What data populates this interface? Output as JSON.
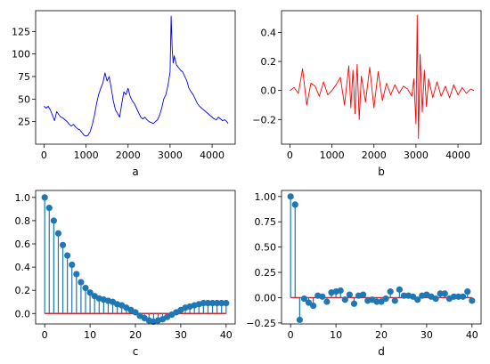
{
  "chart_data": [
    {
      "type": "line",
      "xlabel": "a",
      "color": "#0000ff",
      "xlim": [
        -200,
        4550
      ],
      "ylim": [
        0,
        148
      ],
      "xticks": [
        0,
        1000,
        2000,
        3000,
        4000
      ],
      "yticks": [
        25,
        50,
        75,
        100,
        125
      ],
      "x": [
        0,
        50,
        100,
        150,
        200,
        250,
        300,
        350,
        400,
        450,
        500,
        550,
        600,
        650,
        700,
        750,
        800,
        850,
        900,
        950,
        1000,
        1050,
        1100,
        1150,
        1200,
        1250,
        1300,
        1350,
        1400,
        1450,
        1500,
        1550,
        1600,
        1650,
        1700,
        1750,
        1800,
        1850,
        1900,
        1950,
        2000,
        2050,
        2100,
        2150,
        2200,
        2250,
        2300,
        2350,
        2400,
        2450,
        2500,
        2550,
        2600,
        2650,
        2700,
        2750,
        2800,
        2850,
        2900,
        2950,
        3000,
        3025,
        3050,
        3075,
        3100,
        3150,
        3200,
        3250,
        3300,
        3350,
        3400,
        3450,
        3500,
        3550,
        3600,
        3650,
        3700,
        3750,
        3800,
        3850,
        3900,
        3950,
        4000,
        4050,
        4100,
        4150,
        4200,
        4250,
        4300,
        4350,
        4380
      ],
      "values": [
        42,
        40,
        42,
        38,
        32,
        26,
        36,
        33,
        30,
        29,
        27,
        25,
        22,
        20,
        22,
        19,
        17,
        16,
        13,
        10,
        9,
        10,
        14,
        22,
        32,
        45,
        55,
        62,
        68,
        79,
        70,
        75,
        62,
        48,
        38,
        34,
        30,
        45,
        58,
        55,
        62,
        53,
        48,
        45,
        40,
        35,
        30,
        28,
        30,
        27,
        25,
        24,
        23,
        25,
        27,
        32,
        40,
        50,
        55,
        65,
        80,
        142,
        105,
        90,
        98,
        88,
        85,
        82,
        80,
        75,
        70,
        62,
        58,
        55,
        50,
        45,
        42,
        40,
        38,
        36,
        34,
        32,
        30,
        28,
        27,
        30,
        28,
        26,
        27,
        25,
        23
      ]
    },
    {
      "type": "line",
      "xlabel": "b",
      "color": "#ff0000",
      "xlim": [
        -200,
        4550
      ],
      "ylim": [
        -0.37,
        0.55
      ],
      "xticks": [
        0,
        1000,
        2000,
        3000,
        4000
      ],
      "yticks": [
        -0.2,
        0.0,
        0.2,
        0.4
      ],
      "x": [
        0,
        100,
        200,
        300,
        400,
        500,
        600,
        700,
        800,
        900,
        1000,
        1100,
        1200,
        1300,
        1400,
        1450,
        1500,
        1550,
        1600,
        1650,
        1700,
        1800,
        1900,
        2000,
        2100,
        2200,
        2300,
        2400,
        2500,
        2600,
        2700,
        2800,
        2900,
        2950,
        3000,
        3030,
        3060,
        3100,
        3150,
        3200,
        3250,
        3300,
        3400,
        3500,
        3600,
        3700,
        3800,
        3900,
        4000,
        4100,
        4200,
        4300,
        4380
      ],
      "values": [
        0.0,
        0.02,
        -0.02,
        0.15,
        -0.1,
        0.05,
        0.03,
        -0.04,
        0.06,
        -0.03,
        0.0,
        0.04,
        0.09,
        -0.1,
        0.17,
        -0.12,
        0.14,
        -0.16,
        0.18,
        -0.2,
        0.1,
        -0.08,
        0.16,
        -0.12,
        0.13,
        -0.07,
        0.05,
        -0.03,
        0.04,
        -0.02,
        0.03,
        0.01,
        -0.04,
        0.08,
        -0.23,
        0.52,
        -0.33,
        0.25,
        -0.15,
        0.14,
        -0.11,
        0.08,
        -0.05,
        0.06,
        -0.04,
        0.03,
        -0.05,
        0.04,
        -0.03,
        0.02,
        -0.02,
        0.01,
        0.0
      ]
    },
    {
      "type": "stem",
      "xlabel": "c",
      "stem_color": "#1f77b4",
      "baseline_color": "#d62728",
      "xlim": [
        -2,
        42
      ],
      "ylim": [
        -0.09,
        1.06
      ],
      "xticks": [
        0,
        10,
        20,
        30,
        40
      ],
      "yticks": [
        0.0,
        0.2,
        0.4,
        0.6,
        0.8,
        1.0
      ],
      "x": [
        0,
        1,
        2,
        3,
        4,
        5,
        6,
        7,
        8,
        9,
        10,
        11,
        12,
        13,
        14,
        15,
        16,
        17,
        18,
        19,
        20,
        21,
        22,
        23,
        24,
        25,
        26,
        27,
        28,
        29,
        30,
        31,
        32,
        33,
        34,
        35,
        36,
        37,
        38,
        39,
        40
      ],
      "values": [
        1.0,
        0.91,
        0.8,
        0.69,
        0.59,
        0.5,
        0.42,
        0.34,
        0.27,
        0.22,
        0.18,
        0.15,
        0.13,
        0.12,
        0.11,
        0.1,
        0.08,
        0.07,
        0.05,
        0.03,
        0.01,
        -0.02,
        -0.04,
        -0.06,
        -0.07,
        -0.06,
        -0.05,
        -0.03,
        -0.01,
        0.01,
        0.03,
        0.05,
        0.06,
        0.07,
        0.08,
        0.09,
        0.09,
        0.09,
        0.09,
        0.09,
        0.09
      ]
    },
    {
      "type": "stem",
      "xlabel": "d",
      "stem_color": "#1f77b4",
      "baseline_color": "#d62728",
      "xlim": [
        -2,
        42
      ],
      "ylim": [
        -0.26,
        1.06
      ],
      "xticks": [
        0,
        10,
        20,
        30,
        40
      ],
      "yticks": [
        -0.25,
        0.0,
        0.25,
        0.5,
        0.75,
        1.0
      ],
      "x": [
        0,
        1,
        2,
        3,
        4,
        5,
        6,
        7,
        8,
        9,
        10,
        11,
        12,
        13,
        14,
        15,
        16,
        17,
        18,
        19,
        20,
        21,
        22,
        23,
        24,
        25,
        26,
        27,
        28,
        29,
        30,
        31,
        32,
        33,
        34,
        35,
        36,
        37,
        38,
        39,
        40
      ],
      "values": [
        1.0,
        0.92,
        -0.22,
        -0.01,
        -0.05,
        -0.08,
        0.02,
        0.01,
        -0.04,
        0.05,
        0.06,
        0.07,
        -0.02,
        0.03,
        -0.06,
        0.02,
        0.03,
        -0.03,
        -0.02,
        -0.04,
        -0.04,
        -0.01,
        0.06,
        -0.03,
        0.08,
        0.02,
        0.02,
        0.01,
        -0.02,
        0.02,
        0.03,
        0.01,
        -0.01,
        0.04,
        0.04,
        -0.01,
        0.01,
        0.01,
        0.01,
        0.06,
        -0.03
      ]
    }
  ]
}
